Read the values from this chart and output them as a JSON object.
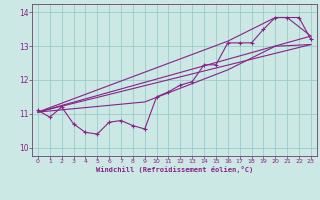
{
  "xlabel": "Windchill (Refroidissement éolien,°C)",
  "bg_color": "#cce8e4",
  "line_color": "#882288",
  "grid_color": "#99cccc",
  "spine_color": "#664466",
  "xlim": [
    -0.5,
    23.5
  ],
  "ylim": [
    9.75,
    14.25
  ],
  "xticks": [
    0,
    1,
    2,
    3,
    4,
    5,
    6,
    7,
    8,
    9,
    10,
    11,
    12,
    13,
    14,
    15,
    16,
    17,
    18,
    19,
    20,
    21,
    22,
    23
  ],
  "yticks": [
    10,
    11,
    12,
    13,
    14
  ],
  "series": [
    [
      0,
      11.1
    ],
    [
      1,
      10.9
    ],
    [
      2,
      11.2
    ],
    [
      3,
      10.7
    ],
    [
      4,
      10.45
    ],
    [
      5,
      10.4
    ],
    [
      6,
      10.75
    ],
    [
      7,
      10.8
    ],
    [
      8,
      10.65
    ],
    [
      9,
      10.55
    ],
    [
      10,
      11.5
    ],
    [
      11,
      11.65
    ],
    [
      12,
      11.85
    ],
    [
      13,
      11.95
    ],
    [
      14,
      12.45
    ],
    [
      15,
      12.45
    ],
    [
      16,
      13.1
    ],
    [
      17,
      13.1
    ],
    [
      18,
      13.1
    ],
    [
      19,
      13.5
    ],
    [
      20,
      13.85
    ],
    [
      21,
      13.85
    ],
    [
      22,
      13.85
    ],
    [
      23,
      13.2
    ]
  ],
  "line_upper": [
    [
      0,
      11.05
    ],
    [
      23,
      13.3
    ]
  ],
  "line_lower": [
    [
      0,
      11.05
    ],
    [
      23,
      13.05
    ]
  ],
  "line_diag_upper": [
    [
      0,
      11.05
    ],
    [
      16,
      13.15
    ],
    [
      20,
      13.85
    ],
    [
      21,
      13.85
    ],
    [
      23,
      13.3
    ]
  ],
  "line_diag_lower": [
    [
      0,
      11.05
    ],
    [
      9,
      11.35
    ],
    [
      16,
      12.3
    ],
    [
      20,
      13.0
    ],
    [
      23,
      13.05
    ]
  ]
}
